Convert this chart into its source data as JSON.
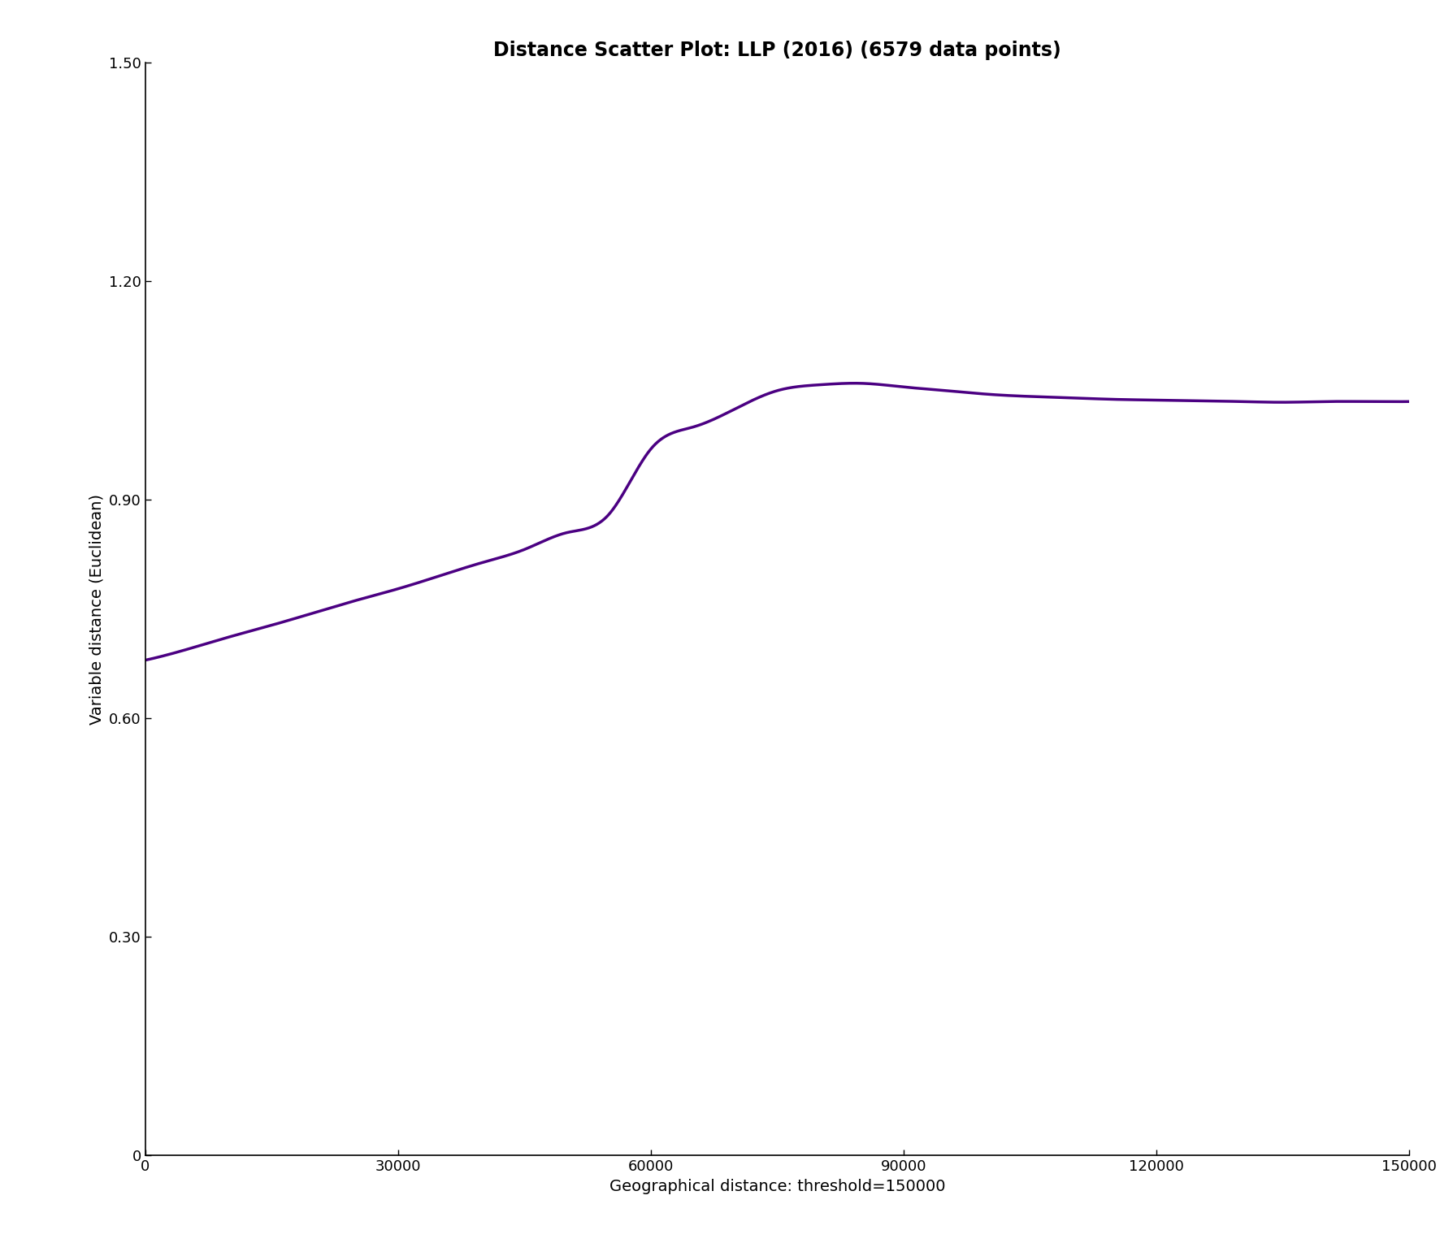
{
  "title": "Distance Scatter Plot: LLP (2016) (6579 data points)",
  "xlabel": "Geographical distance: threshold=150000",
  "ylabel": "Variable distance (Euclidean)",
  "xlim": [
    0,
    150000
  ],
  "ylim": [
    0,
    1.5
  ],
  "yticks": [
    0,
    0.3,
    0.6,
    0.9,
    1.2,
    1.5
  ],
  "xticks": [
    0,
    30000,
    60000,
    90000,
    120000,
    150000
  ],
  "xtick_labels": [
    "0",
    "30000",
    "60000",
    "90000",
    "120000",
    "150000"
  ],
  "ytick_labels": [
    "0",
    "0.30",
    "0.60",
    "0.90",
    "1.20",
    "1.50"
  ],
  "line_color": "#4b0082",
  "line_width": 2.5,
  "background_color": "#ffffff",
  "title_fontsize": 17,
  "label_fontsize": 14,
  "tick_fontsize": 13,
  "curve_x": [
    0,
    5000,
    10000,
    15000,
    20000,
    25000,
    30000,
    35000,
    40000,
    45000,
    50000,
    55000,
    60000,
    65000,
    70000,
    75000,
    80000,
    85000,
    90000,
    95000,
    100000,
    105000,
    110000,
    115000,
    120000,
    125000,
    130000,
    135000,
    140000,
    145000,
    150000
  ],
  "curve_y": [
    0.68,
    0.695,
    0.712,
    0.728,
    0.745,
    0.762,
    0.778,
    0.796,
    0.814,
    0.832,
    0.855,
    0.88,
    0.97,
    1.0,
    1.025,
    1.05,
    1.058,
    1.06,
    1.055,
    1.05,
    1.045,
    1.042,
    1.04,
    1.038,
    1.037,
    1.036,
    1.035,
    1.034,
    1.035,
    1.035,
    1.035
  ]
}
